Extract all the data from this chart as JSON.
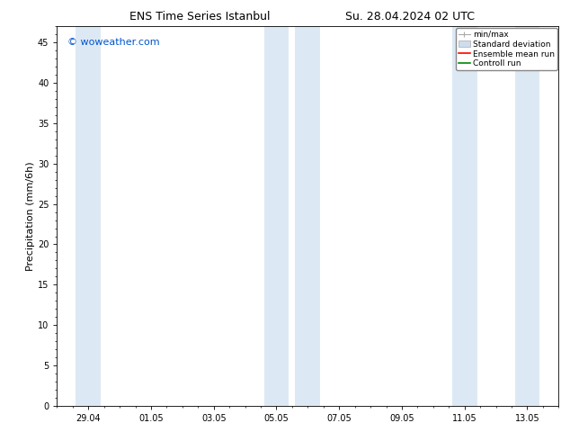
{
  "title_left": "ENS Time Series Istanbul",
  "title_right": "Su. 28.04.2024 02 UTC",
  "ylabel": "Precipitation (mm/6h)",
  "watermark": "© woweather.com",
  "watermark_color": "#0055cc",
  "background_color": "#ffffff",
  "plot_bg_color": "#ffffff",
  "shaded_color": "#dce9f5",
  "ylim": [
    0,
    47
  ],
  "yticks": [
    0,
    5,
    10,
    15,
    20,
    25,
    30,
    35,
    40,
    45
  ],
  "xtick_labels": [
    "29.04",
    "01.05",
    "03.05",
    "05.05",
    "07.05",
    "09.05",
    "11.05",
    "13.05"
  ],
  "x_tick_positions": [
    1,
    3,
    5,
    7,
    9,
    11,
    13,
    15
  ],
  "x_min": 0,
  "x_max": 16,
  "shaded_x": [
    [
      0.6,
      1.4
    ],
    [
      6.6,
      7.4
    ],
    [
      7.6,
      8.4
    ],
    [
      12.6,
      13.4
    ],
    [
      14.6,
      15.4
    ]
  ],
  "legend_entries": [
    {
      "label": "min/max",
      "color": "#aaaaaa",
      "type": "errorbar"
    },
    {
      "label": "Standard deviation",
      "color": "#cccccc",
      "type": "band"
    },
    {
      "label": "Ensemble mean run",
      "color": "#ff0000",
      "type": "line"
    },
    {
      "label": "Controll run",
      "color": "#008800",
      "type": "line"
    }
  ],
  "title_fontsize": 9,
  "tick_fontsize": 7,
  "ylabel_fontsize": 8,
  "watermark_fontsize": 8,
  "legend_fontsize": 6.5
}
